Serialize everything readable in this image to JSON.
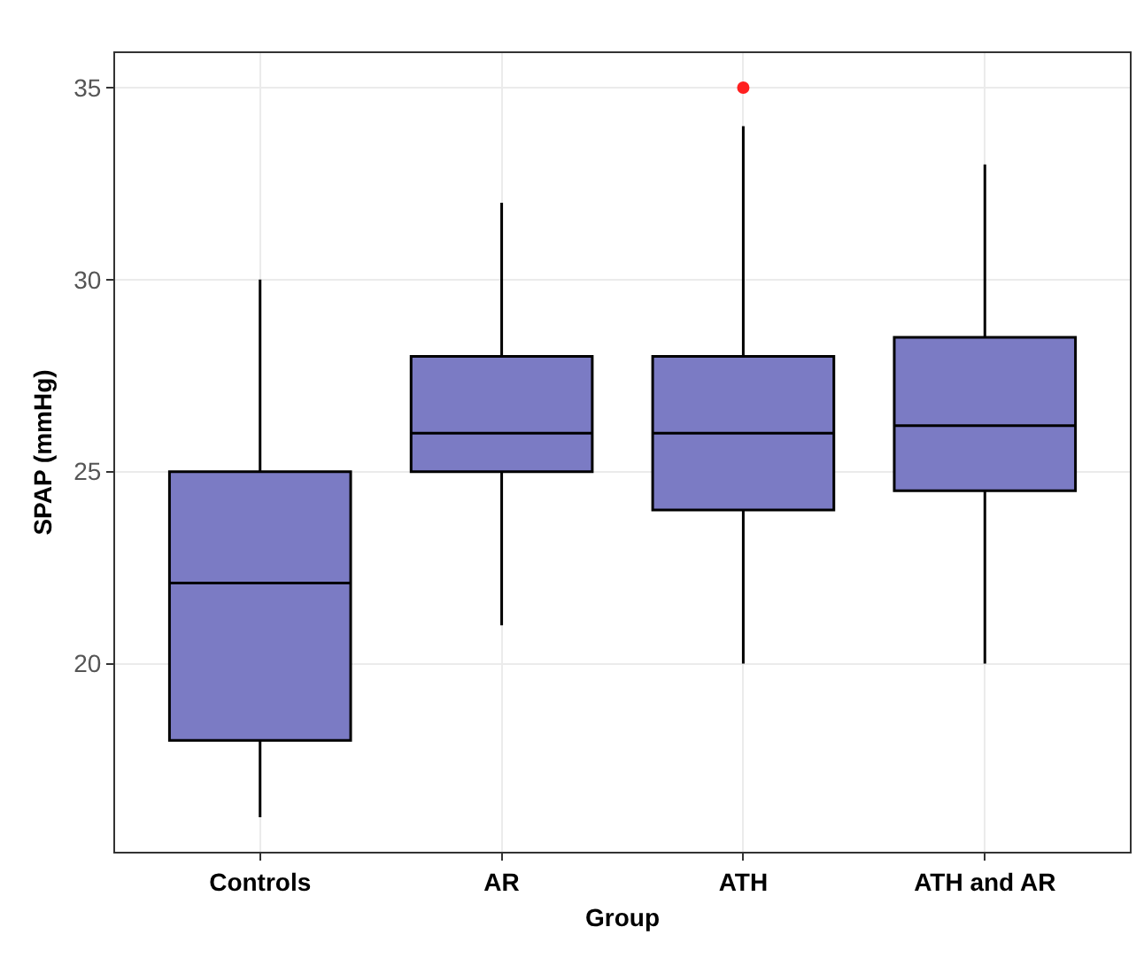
{
  "chart_data": {
    "type": "box",
    "xlabel": "Group",
    "ylabel": "SPAP (mmHg)",
    "categories": [
      "Controls",
      "AR",
      "ATH",
      "ATH and AR"
    ],
    "series": [
      {
        "color": "#7b7bc4",
        "boxes": [
          {
            "low": 16,
            "q1": 18,
            "median": 22.1,
            "q3": 25,
            "high": 30
          },
          {
            "low": 21,
            "q1": 25,
            "median": 26,
            "q3": 28,
            "high": 32
          },
          {
            "low": 20,
            "q1": 24,
            "median": 26,
            "q3": 28,
            "high": 34
          },
          {
            "low": 20,
            "q1": 24.5,
            "median": 26.2,
            "q3": 28.5,
            "high": 33
          }
        ]
      },
      {
        "type": "scatter",
        "color": "#ff2020",
        "x": [
          "ATH"
        ],
        "values": [
          35
        ]
      }
    ],
    "ylim": [
      15.1,
      35.9
    ],
    "yticks": [
      20,
      25,
      30,
      35
    ],
    "grid": true
  }
}
